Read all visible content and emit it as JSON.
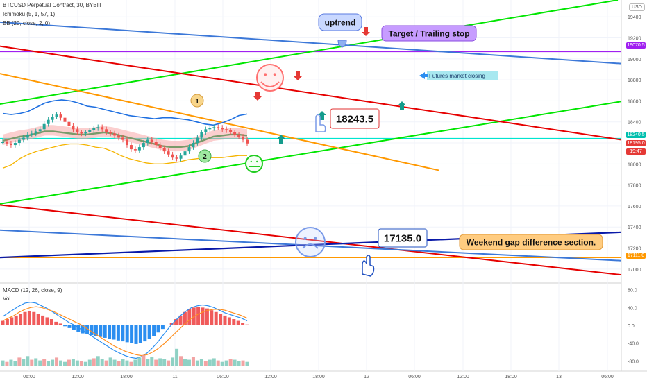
{
  "legend": {
    "symbol": "BTCUSD Perpetual Contract, 30, BYBIT",
    "ichimoku": "Ichimoku (5, 1, 57, 1)",
    "bb": "BB (20, close, 2, 0)",
    "macd": "MACD (12, 26, close, 9)",
    "vol": "Vol"
  },
  "currency": "USD",
  "colors": {
    "green": "#00e600",
    "red": "#e60000",
    "orange": "#ff9800",
    "blue": "#3c78d8",
    "navy": "#0a1aa8",
    "purple": "#a020f0",
    "cyan": "#00e5d0",
    "candle_up": "#26a69a",
    "candle_down": "#ef5350"
  },
  "price_tags": {
    "target": "19070.5",
    "current": "18240.5",
    "close": "18195.0",
    "countdown": "19:47",
    "gap": "17111.0"
  },
  "annotations": {
    "uptrend": "uptrend",
    "target": "Target / Trailing stop",
    "futures": "Futures market closing",
    "price1": "18243.5",
    "price2": "17135.0",
    "weekend": "Weekend gap difference section.",
    "marker1": "1",
    "marker2": "2"
  },
  "chart_data": {
    "type": "line",
    "title": "BTCUSD Perpetual Contract, 30, BYBIT",
    "x_ticks": [
      "06:00",
      "12:00",
      "18:00",
      "11",
      "06:00",
      "12:00",
      "18:00",
      "12",
      "06:00",
      "12:00",
      "18:00",
      "13",
      "06:00"
    ],
    "y_ticks": [
      19400,
      19200,
      19000,
      18800,
      18600,
      18400,
      18200,
      18000,
      17800,
      17600,
      17400,
      17200,
      17000
    ],
    "ylim": [
      16880,
      19560
    ],
    "macd_ticks": [
      80,
      40,
      0,
      -40,
      -80
    ],
    "macd_ylim": [
      -92,
      92
    ],
    "trendlines": [
      {
        "name": "uptrend",
        "color": "green",
        "from": [
          0,
          18570
        ],
        "to": [
          890,
          19560
        ]
      },
      {
        "name": "lower uptrend",
        "color": "green",
        "from": [
          0,
          17620
        ],
        "to": [
          895,
          18595
        ]
      },
      {
        "name": "red resistance",
        "color": "red",
        "from": [
          0,
          19120
        ],
        "to": [
          895,
          18230
        ]
      },
      {
        "name": "red lower",
        "color": "red",
        "from": [
          0,
          17610
        ],
        "to": [
          895,
          16945
        ]
      },
      {
        "name": "orange",
        "color": "orange",
        "from": [
          0,
          18860
        ],
        "to": [
          632,
          17940
        ]
      },
      {
        "name": "blue upper",
        "color": "blue",
        "from": [
          0,
          19350
        ],
        "to": [
          895,
          18955
        ]
      },
      {
        "name": "blue lower",
        "color": "blue",
        "from": [
          0,
          17370
        ],
        "to": [
          895,
          17080
        ]
      },
      {
        "name": "navy",
        "color": "navy",
        "from": [
          0,
          17110
        ],
        "to": [
          895,
          17350
        ]
      }
    ],
    "levels": [
      {
        "price": 19070.5,
        "color": "purple"
      },
      {
        "price": 18240.5,
        "color": "cyan"
      },
      {
        "price": 17111.0,
        "color": "orange"
      }
    ],
    "price_series": [
      18210,
      18195,
      18180,
      18200,
      18230,
      18250,
      18280,
      18290,
      18310,
      18330,
      18380,
      18420,
      18450,
      18470,
      18440,
      18400,
      18360,
      18330,
      18300,
      18290,
      18300,
      18320,
      18340,
      18350,
      18330,
      18300,
      18290,
      18270,
      18250,
      18230,
      18180,
      18140,
      18130,
      18160,
      18200,
      18230,
      18210,
      18180,
      18150,
      18120,
      18090,
      18060,
      18050,
      18080,
      18120,
      18160,
      18200,
      18250,
      18300,
      18330,
      18340,
      18350,
      18345,
      18330,
      18320,
      18300,
      18280,
      18260,
      18230,
      18195
    ],
    "bb_upper": [
      18480,
      18470,
      18480,
      18500,
      18540,
      18580,
      18600,
      18610,
      18600,
      18580,
      18550,
      18540,
      18520,
      18500,
      18480,
      18460,
      18450,
      18440,
      18430,
      18440,
      18440,
      18430,
      18420,
      18400,
      18380,
      18370,
      18390,
      18420,
      18460,
      18475
    ],
    "bb_lower": [
      17960,
      17990,
      18050,
      18090,
      18120,
      18140,
      18160,
      18180,
      18190,
      18190,
      18180,
      18160,
      18150,
      18120,
      18080,
      18050,
      18030,
      18010,
      18000,
      18000,
      18010,
      18020,
      18040,
      18050,
      18060,
      18060,
      18060,
      18070,
      18080,
      18080
    ],
    "ichimoku_base": [
      18220,
      18240,
      18260,
      18270,
      18290,
      18310,
      18310,
      18300,
      18290,
      18280,
      18280,
      18290,
      18300,
      18290,
      18270,
      18250,
      18230,
      18210,
      18190,
      18170,
      18160,
      18160,
      18170,
      18200,
      18230,
      18260,
      18270,
      18280,
      18280,
      18270
    ],
    "macd_hist": [
      10,
      14,
      18,
      22,
      26,
      30,
      32,
      30,
      26,
      22,
      18,
      14,
      8,
      4,
      -2,
      -6,
      -10,
      -14,
      -18,
      -20,
      -22,
      -24,
      -26,
      -28,
      -30,
      -32,
      -34,
      -36,
      -38,
      -40,
      -42,
      -40,
      -36,
      -30,
      -24,
      -16,
      -8,
      0,
      6,
      14,
      22,
      30,
      36,
      40,
      42,
      40,
      38,
      34,
      30,
      26,
      22,
      18,
      14,
      10,
      6,
      2
    ],
    "macd_line": [
      20,
      28,
      36,
      44,
      50,
      52,
      50,
      44,
      38,
      30,
      22,
      14,
      6,
      0,
      -8,
      -16,
      -24,
      -32,
      -40,
      -48,
      -56,
      -62,
      -68,
      -72,
      -74,
      -70,
      -62,
      -50,
      -36,
      -20,
      -4,
      10,
      22,
      32,
      40,
      44,
      46,
      44,
      40,
      34,
      28,
      24,
      20,
      16,
      10
    ],
    "signal_line": [
      10,
      16,
      22,
      30,
      36,
      40,
      42,
      40,
      36,
      32,
      26,
      20,
      14,
      8,
      2,
      -6,
      -14,
      -22,
      -30,
      -38,
      -46,
      -52,
      -58,
      -62,
      -66,
      -68,
      -66,
      -60,
      -52,
      -42,
      -30,
      -18,
      -6,
      6,
      16,
      24,
      30,
      34,
      36,
      36,
      34,
      30,
      26,
      22,
      16
    ],
    "volume": [
      8,
      6,
      9,
      7,
      12,
      10,
      14,
      9,
      11,
      8,
      10,
      7,
      9,
      12,
      8,
      6,
      9,
      10,
      8,
      7,
      6,
      9,
      11,
      14,
      10,
      8,
      12,
      9,
      7,
      10,
      8,
      6,
      9,
      12,
      15,
      10,
      13,
      9,
      11,
      10,
      8,
      12,
      24,
      14,
      10,
      9,
      13,
      8,
      10,
      7,
      9,
      11,
      8,
      6,
      8,
      10,
      9,
      7,
      8,
      6
    ]
  }
}
